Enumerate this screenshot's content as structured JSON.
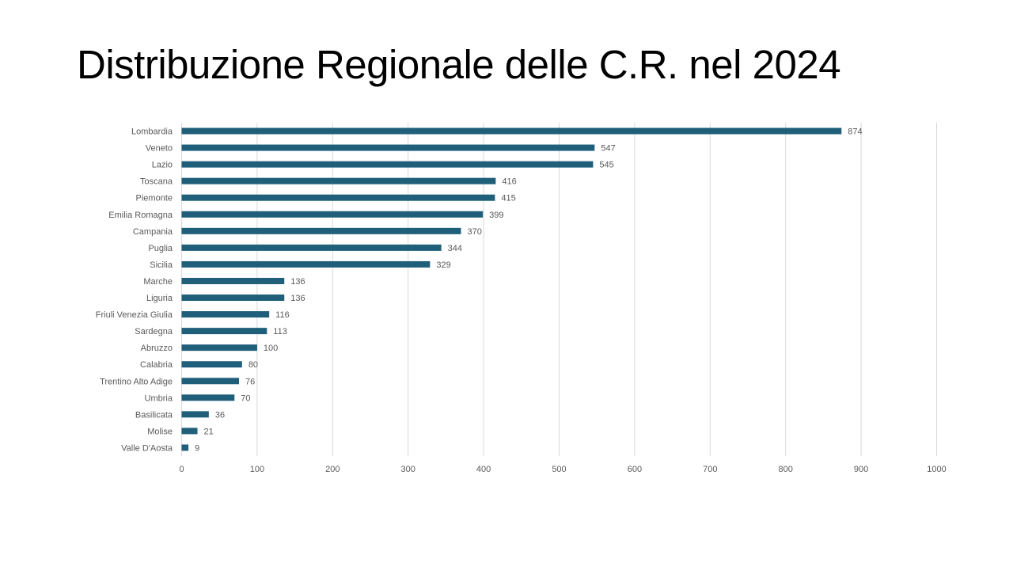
{
  "slide": {
    "title": "Distribuzione Regionale delle C.R. nel 2024"
  },
  "chart_data": {
    "type": "bar",
    "orientation": "horizontal",
    "title": "",
    "xlabel": "",
    "ylabel": "",
    "categories": [
      "Lombardia",
      "Veneto",
      "Lazio",
      "Toscana",
      "Piemonte",
      "Emilia Romagna",
      "Campania",
      "Puglia",
      "Sicilia",
      "Marche",
      "Liguria",
      "Friuli Venezia Giulia",
      "Sardegna",
      "Abruzzo",
      "Calabria",
      "Trentino Alto Adige",
      "Umbria",
      "Basilicata",
      "Molise",
      "Valle D'Aosta"
    ],
    "values": [
      874,
      547,
      545,
      416,
      415,
      399,
      370,
      344,
      329,
      136,
      136,
      116,
      113,
      100,
      80,
      76,
      70,
      36,
      21,
      9
    ],
    "xlim": [
      0,
      1000
    ],
    "xticks": [
      0,
      100,
      200,
      300,
      400,
      500,
      600,
      700,
      800,
      900,
      1000
    ],
    "grid": "vertical",
    "data_labels": true,
    "bar_color": "#1f5f7a",
    "gridline_color": "#d9d9d9"
  }
}
